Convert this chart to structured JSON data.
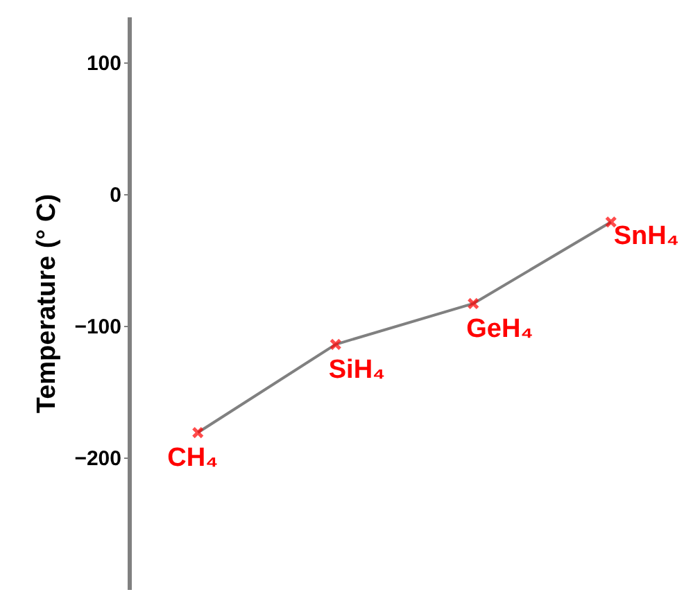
{
  "chart_data": {
    "type": "line",
    "ylabel": "Temperature (° C)",
    "categories": [
      "CH₄",
      "SiH₄",
      "GeH₄",
      "SnH₄"
    ],
    "series": [
      {
        "color": "#808080",
        "values": [
          -181,
          -114,
          -83,
          -21
        ]
      }
    ],
    "colors": [
      "#ff0000",
      "#ff0000",
      "#ff0000",
      "#ff0000"
    ],
    "marker": "cross",
    "line_style": "solid",
    "ylim": [
      -300,
      135
    ],
    "yticks": [
      -200,
      -100,
      0,
      100
    ],
    "grid": false
  }
}
